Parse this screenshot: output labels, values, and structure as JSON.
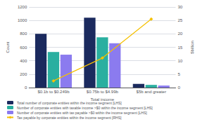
{
  "chart_data": {
    "type": "bar",
    "categories": [
      "$0.1b to $0.249b",
      "$0.75b to $4.99b",
      "$5b and greater"
    ],
    "series": [
      {
        "name": "Total number of corporate entities within the income segment [LHS]",
        "type": "bar",
        "color": "#1b2a5e",
        "values": [
          800,
          1040,
          55
        ]
      },
      {
        "name": "Number of corporate entities with taxable income >$0 within the income segment [LHS]",
        "type": "bar",
        "color": "#2aafa0",
        "values": [
          530,
          750,
          40
        ]
      },
      {
        "name": "Number of corporate entities with tax payable >$0 within the income segment [LHS]",
        "type": "bar",
        "color": "#8b7bef",
        "values": [
          490,
          660,
          30
        ]
      },
      {
        "name": "Tax payable by corporate entities within the income segment [RHS]",
        "type": "line",
        "axis": "y2",
        "color": "#f5c000",
        "marker": "diamond",
        "line_style": "solid",
        "values": [
          2.5,
          11,
          25.5
        ]
      }
    ],
    "xlabel": "Total income",
    "ylabel": "Count",
    "y2label": "$billion",
    "ylim": [
      0,
      1200
    ],
    "yticks": [
      0,
      200,
      400,
      600,
      800,
      1000,
      1200
    ],
    "y2lim": [
      0,
      30
    ],
    "y2ticks": [
      0,
      5,
      10,
      15,
      20,
      25,
      30
    ],
    "grid": true,
    "legend": "lower left"
  }
}
